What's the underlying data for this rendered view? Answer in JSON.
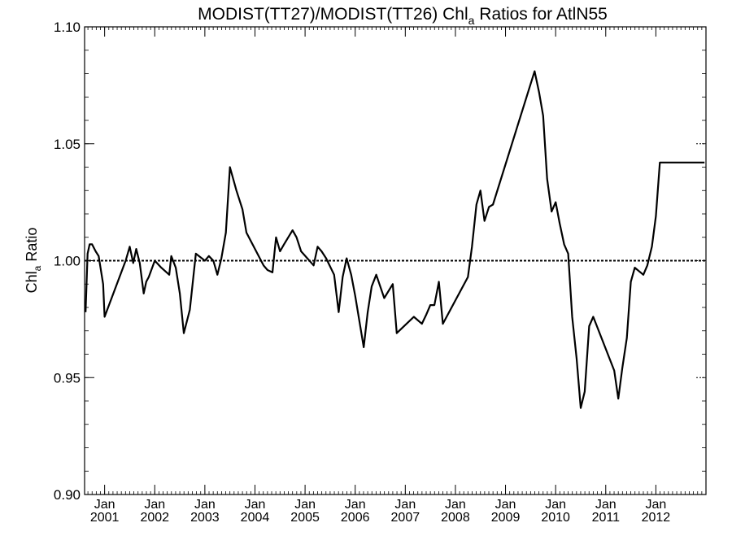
{
  "chart_data": {
    "type": "line",
    "title_main": "MODIST(TT27)/MODIST(TT26)  Chl",
    "title_sub": "a",
    "title_tail": " Ratios for AtlN55",
    "ylabel_main": "Chl",
    "ylabel_sub": "a",
    "ylabel_tail": " Ratio",
    "xlim": [
      2000.6,
      2013.0
    ],
    "ylim": [
      0.9,
      1.1
    ],
    "yticks": [
      {
        "value": 0.9,
        "label": "0.90"
      },
      {
        "value": 0.95,
        "label": "0.95"
      },
      {
        "value": 1.0,
        "label": "1.00"
      },
      {
        "value": 1.05,
        "label": "1.05"
      },
      {
        "value": 1.1,
        "label": "1.10"
      }
    ],
    "xticks": [
      {
        "value": 2001.0,
        "month": "Jan",
        "year": "2001"
      },
      {
        "value": 2002.0,
        "month": "Jan",
        "year": "2002"
      },
      {
        "value": 2003.0,
        "month": "Jan",
        "year": "2003"
      },
      {
        "value": 2004.0,
        "month": "Jan",
        "year": "2004"
      },
      {
        "value": 2005.0,
        "month": "Jan",
        "year": "2005"
      },
      {
        "value": 2006.0,
        "month": "Jan",
        "year": "2006"
      },
      {
        "value": 2007.0,
        "month": "Jan",
        "year": "2007"
      },
      {
        "value": 2008.0,
        "month": "Jan",
        "year": "2008"
      },
      {
        "value": 2009.0,
        "month": "Jan",
        "year": "2009"
      },
      {
        "value": 2010.0,
        "month": "Jan",
        "year": "2010"
      },
      {
        "value": 2011.0,
        "month": "Jan",
        "year": "2011"
      },
      {
        "value": 2012.0,
        "month": "Jan",
        "year": "2012"
      }
    ],
    "reference_line": 1.0,
    "grid": false,
    "series": [
      {
        "color": "#000000",
        "x": [
          2000.62,
          2000.66,
          2000.7,
          2000.75,
          2000.82,
          2000.88,
          2000.97,
          2001.0,
          2001.42,
          2001.5,
          2001.57,
          2001.63,
          2001.7,
          2001.78,
          2001.83,
          2001.88,
          2002.0,
          2002.13,
          2002.29,
          2002.33,
          2002.42,
          2002.5,
          2002.58,
          2002.7,
          2002.82,
          2003.0,
          2003.08,
          2003.17,
          2003.25,
          2003.33,
          2003.42,
          2003.5,
          2003.63,
          2003.75,
          2003.83,
          2004.17,
          2004.25,
          2004.35,
          2004.42,
          2004.5,
          2004.58,
          2004.75,
          2004.83,
          2004.92,
          2005.17,
          2005.25,
          2005.33,
          2005.42,
          2005.58,
          2005.67,
          2005.75,
          2005.83,
          2005.92,
          2006.0,
          2006.17,
          2006.25,
          2006.33,
          2006.42,
          2006.58,
          2006.75,
          2006.83,
          2007.17,
          2007.33,
          2007.42,
          2007.5,
          2007.58,
          2007.67,
          2007.75,
          2008.25,
          2008.33,
          2008.42,
          2008.5,
          2008.58,
          2008.67,
          2008.75,
          2009.58,
          2009.67,
          2009.75,
          2009.83,
          2009.92,
          2010.0,
          2010.08,
          2010.17,
          2010.25,
          2010.33,
          2010.42,
          2010.5,
          2010.58,
          2010.67,
          2010.75,
          2011.17,
          2011.25,
          2011.33,
          2011.42,
          2011.5,
          2011.58,
          2011.75,
          2011.83,
          2011.92,
          2012.0,
          2012.08,
          2012.17,
          2012.25,
          2012.33,
          2012.42,
          2012.5,
          2012.58,
          2012.67,
          2012.75,
          2012.83,
          2012.92,
          2012.97
        ],
        "y": [
          0.978,
          1.003,
          1.007,
          1.007,
          1.004,
          1.002,
          0.99,
          0.976,
          1.0,
          1.006,
          0.999,
          1.005,
          0.999,
          0.986,
          0.991,
          0.993,
          1.0,
          0.997,
          0.994,
          1.002,
          0.997,
          0.986,
          0.969,
          0.979,
          1.003,
          1.0,
          1.002,
          1.0,
          0.994,
          1.001,
          1.012,
          1.04,
          1.03,
          1.022,
          1.012,
          0.998,
          0.996,
          0.995,
          1.01,
          1.004,
          1.007,
          1.013,
          1.01,
          1.004,
          0.998,
          1.006,
          1.004,
          1.001,
          0.994,
          0.978,
          0.993,
          1.001,
          0.994,
          0.985,
          0.963,
          0.978,
          0.989,
          0.994,
          0.984,
          0.99,
          0.969,
          0.976,
          0.973,
          0.977,
          0.981,
          0.981,
          0.991,
          0.973,
          0.993,
          1.006,
          1.024,
          1.03,
          1.017,
          1.023,
          1.024,
          1.081,
          1.072,
          1.062,
          1.035,
          1.021,
          1.025,
          1.016,
          1.007,
          1.003,
          0.976,
          0.958,
          0.937,
          0.944,
          0.972,
          0.976,
          0.953,
          0.941,
          0.954,
          0.967,
          0.991,
          0.997,
          0.994,
          0.998,
          1.006,
          1.019,
          1.042,
          1.042,
          1.042,
          1.042,
          1.042,
          1.042,
          1.042,
          1.042,
          1.042,
          1.042,
          1.042,
          1.042
        ]
      }
    ]
  }
}
